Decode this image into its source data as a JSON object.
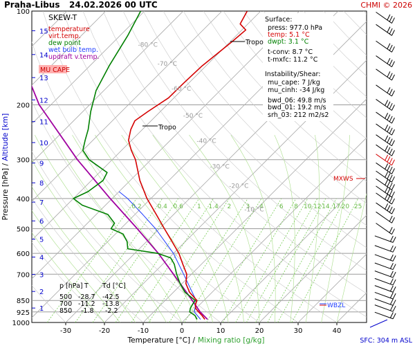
{
  "header": {
    "station": "Praha-Libus",
    "datetime": "24.02.2026 00 UTC",
    "credit": "CHMI © 2026"
  },
  "legend": {
    "title": "SKEW-T",
    "items": [
      {
        "label": "temperature",
        "color": "#d40000"
      },
      {
        "label": "virt.temp.",
        "color": "#d40000"
      },
      {
        "label": "dew point",
        "color": "#008000"
      },
      {
        "label": "wet bulb temp.",
        "color": "#1e3cff"
      },
      {
        "label": "updraft v.temp.",
        "color": "#a000a0"
      }
    ],
    "cape_label": "MU CAPE"
  },
  "surface_box": {
    "title": "Surface:",
    "press": "press: 977.0 hPa",
    "temp": "temp: 5.1 °C",
    "dwpt": "dwpt: 3.1 °C",
    "tconv": "t-conv: 8.7 °C",
    "tmxfc": "t-mxfc: 11.2 °C",
    "instab_title": "Instability/Shear:",
    "mu_cape": "mu_cape: 7 J/kg",
    "mu_cinh": "mu_cinh: -34 J/kg",
    "bwd_06": "bwd_06: 49.8 m/s",
    "bwd_01": "bwd_01: 19.2 m/s",
    "srh_03": "srh_03: 212 m2/s2"
  },
  "table": {
    "headers": [
      "p [hPa]",
      "T",
      "Td [°C]"
    ],
    "rows": [
      [
        "500",
        "-28.7",
        "-42.5"
      ],
      [
        "700",
        "-11.2",
        "-13.8"
      ],
      [
        "850",
        "-1.8",
        "-2.2"
      ]
    ]
  },
  "annotations": {
    "tropo_upper": "Tropo",
    "tropo_lower": "Tropo",
    "mxws": "MXWS",
    "wbzl": "WBZL",
    "sfc": "SFC: 304 m ASL"
  },
  "colors": {
    "temperature": "#d40000",
    "dewpoint": "#008000",
    "wetbulb": "#1e3cff",
    "parcel": "#a000a0",
    "isobar": "#9a9a9a",
    "isotherm": "#aaaaaa",
    "mixing_ratio": "#77cc55",
    "title_blue": "#0000cc"
  },
  "chart_data": {
    "type": "line",
    "title": "Praha-Libus 24.02.2026 00 UTC",
    "xlabel": "Temperature [°C] / Mixing ratio [g/kg]",
    "ylabel": "Pressure [hPa] / Altitude [km]",
    "xlim": [
      -38,
      45
    ],
    "ylim": [
      1000,
      100
    ],
    "x_ticks": [
      -30,
      -20,
      -10,
      0,
      10,
      20,
      30,
      40
    ],
    "pressure_ticks": [
      100,
      200,
      300,
      400,
      500,
      600,
      700,
      850,
      925,
      1000
    ],
    "altitude_ticks_km": [
      1,
      2,
      3,
      4,
      5,
      6,
      7,
      8,
      9,
      10,
      11,
      12,
      13,
      14,
      15
    ],
    "isotherm_labels": [
      -80,
      -70,
      -60,
      -50,
      -40,
      -30,
      -20,
      -10
    ],
    "mixing_ratio_labels": [
      "0.2",
      "0.4",
      "0.6",
      "1",
      "1.4",
      "2",
      "3",
      "4",
      "6",
      "8",
      "10",
      "12",
      "14",
      "17",
      "20",
      "25"
    ],
    "series": [
      {
        "name": "temperature",
        "points": [
          [
            977,
            5.1
          ],
          [
            950,
            3.4
          ],
          [
            925,
            1.6
          ],
          [
            900,
            -0.2
          ],
          [
            870,
            -1.3
          ],
          [
            850,
            -1.8
          ],
          [
            800,
            -5.8
          ],
          [
            750,
            -9.0
          ],
          [
            700,
            -11.2
          ],
          [
            650,
            -14.8
          ],
          [
            600,
            -18.6
          ],
          [
            550,
            -23.4
          ],
          [
            500,
            -28.7
          ],
          [
            450,
            -34.5
          ],
          [
            400,
            -41.0
          ],
          [
            350,
            -47.5
          ],
          [
            300,
            -54.0
          ],
          [
            280,
            -57.5
          ],
          [
            260,
            -60.8
          ],
          [
            240,
            -63.0
          ],
          [
            225,
            -64.2
          ],
          [
            210,
            -63.2
          ],
          [
            190,
            -61.4
          ],
          [
            170,
            -61.3
          ],
          [
            150,
            -61.0
          ],
          [
            125,
            -59.5
          ],
          [
            115,
            -59.0
          ],
          [
            110,
            -62.0
          ],
          [
            100,
            -63.5
          ]
        ]
      },
      {
        "name": "dew point",
        "points": [
          [
            977,
            3.1
          ],
          [
            950,
            1.6
          ],
          [
            925,
            -0.7
          ],
          [
            900,
            -1.5
          ],
          [
            870,
            -2.0
          ],
          [
            850,
            -2.2
          ],
          [
            800,
            -7.0
          ],
          [
            750,
            -10.5
          ],
          [
            700,
            -13.8
          ],
          [
            650,
            -17.0
          ],
          [
            620,
            -19.6
          ],
          [
            600,
            -24.0
          ],
          [
            580,
            -33.0
          ],
          [
            550,
            -35.0
          ],
          [
            520,
            -38.0
          ],
          [
            500,
            -42.5
          ],
          [
            480,
            -43.0
          ],
          [
            450,
            -47.0
          ],
          [
            420,
            -56.0
          ],
          [
            400,
            -60.0
          ],
          [
            380,
            -58.0
          ],
          [
            350,
            -57.0
          ],
          [
            330,
            -58.0
          ],
          [
            300,
            -66.0
          ],
          [
            280,
            -70.0
          ],
          [
            260,
            -72.0
          ],
          [
            240,
            -74.0
          ],
          [
            210,
            -78.0
          ],
          [
            180,
            -82.0
          ],
          [
            150,
            -85.0
          ],
          [
            120,
            -88.0
          ],
          [
            100,
            -91.0
          ]
        ]
      },
      {
        "name": "wet bulb temp.",
        "points": [
          [
            977,
            4.0
          ],
          [
            925,
            0.5
          ],
          [
            850,
            -2.0
          ],
          [
            700,
            -12.0
          ],
          [
            600,
            -20.0
          ],
          [
            500,
            -31.0
          ],
          [
            450,
            -38.0
          ],
          [
            400,
            -46.0
          ],
          [
            380,
            -50.0
          ]
        ]
      },
      {
        "name": "updraft v.temp.",
        "points": [
          [
            977,
            5.8
          ],
          [
            925,
            2.0
          ],
          [
            850,
            -3.0
          ],
          [
            800,
            -6.6
          ],
          [
            700,
            -14.6
          ],
          [
            600,
            -23.9
          ],
          [
            500,
            -35.7
          ],
          [
            400,
            -50.5
          ],
          [
            300,
            -69.0
          ],
          [
            200,
            -93.0
          ],
          [
            100,
            -127.0
          ]
        ]
      }
    ]
  }
}
